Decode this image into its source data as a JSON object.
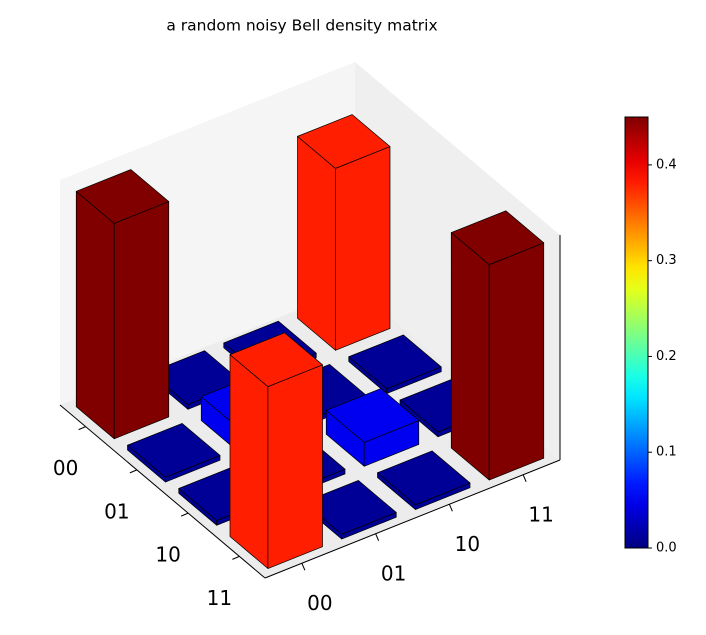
{
  "chart_data": {
    "type": "bar3d",
    "title": "a random noisy Bell density matrix",
    "row_labels": [
      "00",
      "01",
      "10",
      "11"
    ],
    "col_labels": [
      "00",
      "01",
      "10",
      "11"
    ],
    "values": [
      [
        0.45,
        0.01,
        0.01,
        0.38
      ],
      [
        0.01,
        0.05,
        0.01,
        0.01
      ],
      [
        0.01,
        0.01,
        0.05,
        0.01
      ],
      [
        0.38,
        0.01,
        0.01,
        0.45
      ]
    ],
    "zlim": [
      0,
      0.47
    ],
    "colormap": "jet",
    "clim": [
      0,
      0.45
    ],
    "cticks": [
      {
        "value": 0,
        "label": "0.0"
      },
      0.1,
      0.2,
      0.3,
      0.4
    ]
  }
}
